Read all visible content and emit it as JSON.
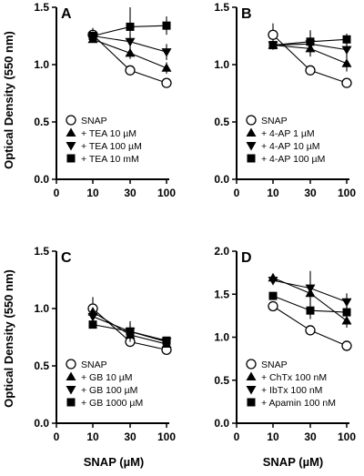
{
  "figure": {
    "ylabel": "Optical Density (550 nm)",
    "xlabel": "SNAP (µM)"
  },
  "chart_data": [
    {
      "type": "line",
      "panel": "A",
      "x": [
        10,
        30,
        100
      ],
      "xticks": [
        "0",
        "10",
        "30",
        "100"
      ],
      "ylim": [
        0.0,
        1.5
      ],
      "yticks": [
        "0.0",
        "0.5",
        "1.0",
        "1.5"
      ],
      "legend_position": "bottom-left",
      "series": [
        {
          "name": "SNAP",
          "marker": "circle-open",
          "values": [
            1.26,
            0.95,
            0.84
          ],
          "errors": [
            0.06,
            0.03,
            0.03
          ]
        },
        {
          "name": "+ TEA 10 µM",
          "marker": "triangle-up",
          "values": [
            1.22,
            1.1,
            0.97
          ],
          "errors": [
            0.03,
            0.05,
            0.05
          ]
        },
        {
          "name": "+ TEA 100 µM",
          "marker": "triangle-down",
          "values": [
            1.25,
            1.2,
            1.11
          ],
          "errors": [
            0.03,
            0.07,
            0.07
          ]
        },
        {
          "name": "+ TEA 10 mM",
          "marker": "square",
          "values": [
            1.25,
            1.33,
            1.34
          ],
          "errors": [
            0.04,
            0.17,
            0.08
          ]
        }
      ]
    },
    {
      "type": "line",
      "panel": "B",
      "x": [
        10,
        30,
        100
      ],
      "xticks": [
        "0",
        "10",
        "30",
        "100"
      ],
      "ylim": [
        0.0,
        1.5
      ],
      "yticks": [
        "0.0",
        "0.5",
        "1.0",
        "1.5"
      ],
      "legend_position": "bottom-left",
      "series": [
        {
          "name": "SNAP",
          "marker": "circle-open",
          "values": [
            1.26,
            0.95,
            0.84
          ],
          "errors": [
            0.1,
            0.04,
            0.04
          ]
        },
        {
          "name": "+ 4-AP 1 µM",
          "marker": "triangle-up",
          "values": [
            1.17,
            1.14,
            1.01
          ],
          "errors": [
            0.03,
            0.07,
            0.07
          ]
        },
        {
          "name": "+ 4-AP 10 µM",
          "marker": "triangle-down",
          "values": [
            1.17,
            1.18,
            1.13
          ],
          "errors": [
            0.03,
            0.1,
            0.06
          ]
        },
        {
          "name": "+ 4-AP 100 µM",
          "marker": "square",
          "values": [
            1.17,
            1.2,
            1.22
          ],
          "errors": [
            0.03,
            0.1,
            0.05
          ]
        }
      ]
    },
    {
      "type": "line",
      "panel": "C",
      "x": [
        10,
        30,
        100
      ],
      "xticks": [
        "0",
        "10",
        "30",
        "100"
      ],
      "ylim": [
        0.0,
        1.5
      ],
      "yticks": [
        "0.0",
        "0.5",
        "1.0",
        "1.5"
      ],
      "legend_position": "bottom-left",
      "series": [
        {
          "name": "SNAP",
          "marker": "circle-open",
          "values": [
            1.0,
            0.71,
            0.64
          ],
          "errors": [
            0.1,
            0.04,
            0.03
          ]
        },
        {
          "name": "+ GB 10 µM",
          "marker": "triangle-up",
          "values": [
            0.97,
            0.77,
            0.69
          ],
          "errors": [
            0.04,
            0.04,
            0.03
          ]
        },
        {
          "name": "+ GB 100 µM",
          "marker": "triangle-down",
          "values": [
            0.93,
            0.8,
            0.71
          ],
          "errors": [
            0.04,
            0.07,
            0.03
          ]
        },
        {
          "name": "+ GB 1000 µM",
          "marker": "square",
          "values": [
            0.86,
            0.8,
            0.72
          ],
          "errors": [
            0.03,
            0.09,
            0.03
          ]
        }
      ]
    },
    {
      "type": "line",
      "panel": "D",
      "x": [
        10,
        30,
        100
      ],
      "xticks": [
        "0",
        "10",
        "30",
        "100"
      ],
      "ylim": [
        0.0,
        2.0
      ],
      "yticks": [
        "0.0",
        "0.5",
        "1.0",
        "1.5",
        "2.0"
      ],
      "legend_position": "bottom-left",
      "series": [
        {
          "name": "SNAP",
          "marker": "circle-open",
          "values": [
            1.36,
            1.08,
            0.9
          ],
          "errors": [
            0.04,
            0.04,
            0.06
          ]
        },
        {
          "name": "+ ChTx 100 nM",
          "marker": "triangle-up",
          "values": [
            1.69,
            1.51,
            1.19
          ],
          "errors": [
            0.04,
            0.08,
            0.08
          ]
        },
        {
          "name": "+ IbTx 100 nM",
          "marker": "triangle-down",
          "values": [
            1.66,
            1.57,
            1.41
          ],
          "errors": [
            0.04,
            0.2,
            0.1
          ]
        },
        {
          "name": "+ Apamin 100 nM",
          "marker": "square",
          "values": [
            1.48,
            1.31,
            1.29
          ],
          "errors": [
            0.04,
            0.1,
            0.08
          ]
        }
      ]
    }
  ]
}
